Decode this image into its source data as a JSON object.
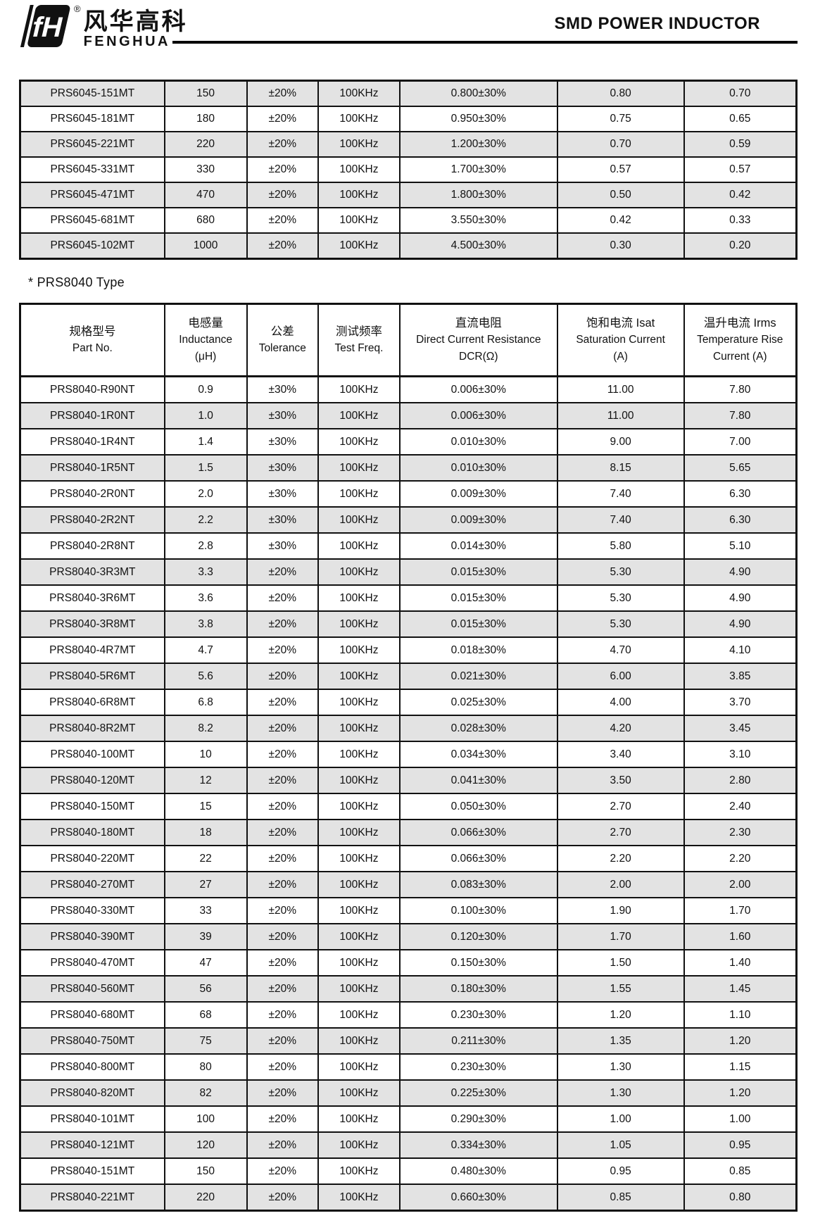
{
  "header": {
    "brand_chinese": "风华高科",
    "brand_english": "FENGHUA",
    "registered_mark": "®",
    "title": "SMD POWER INDUCTOR"
  },
  "colors": {
    "row_shade": "#e3e3e3",
    "border": "#111111",
    "text": "#111111"
  },
  "tables": {
    "prs6045": {
      "rows": [
        [
          "PRS6045-151MT",
          "150",
          "±20%",
          "100KHz",
          "0.800±30%",
          "0.80",
          "0.70"
        ],
        [
          "PRS6045-181MT",
          "180",
          "±20%",
          "100KHz",
          "0.950±30%",
          "0.75",
          "0.65"
        ],
        [
          "PRS6045-221MT",
          "220",
          "±20%",
          "100KHz",
          "1.200±30%",
          "0.70",
          "0.59"
        ],
        [
          "PRS6045-331MT",
          "330",
          "±20%",
          "100KHz",
          "1.700±30%",
          "0.57",
          "0.57"
        ],
        [
          "PRS6045-471MT",
          "470",
          "±20%",
          "100KHz",
          "1.800±30%",
          "0.50",
          "0.42"
        ],
        [
          "PRS6045-681MT",
          "680",
          "±20%",
          "100KHz",
          "3.550±30%",
          "0.42",
          "0.33"
        ],
        [
          "PRS6045-102MT",
          "1000",
          "±20%",
          "100KHz",
          "4.500±30%",
          "0.30",
          "0.20"
        ]
      ]
    },
    "prs8040": {
      "heading": "*  PRS8040 Type",
      "header_lines": [
        [
          "规格型号",
          "Part No."
        ],
        [
          "电感量",
          "Inductance",
          "(μH)"
        ],
        [
          "公差",
          "Tolerance"
        ],
        [
          "测试频率",
          "Test Freq."
        ],
        [
          "直流电阻",
          "Direct Current Resistance",
          "DCR(Ω)"
        ],
        [
          "饱和电流  Isat",
          "Saturation Current",
          "(A)"
        ],
        [
          "温升电流  Irms",
          "Temperature Rise",
          "Current (A)"
        ]
      ],
      "rows": [
        [
          "PRS8040-R90NT",
          "0.9",
          "±30%",
          "100KHz",
          "0.006±30%",
          "11.00",
          "7.80"
        ],
        [
          "PRS8040-1R0NT",
          "1.0",
          "±30%",
          "100KHz",
          "0.006±30%",
          "11.00",
          "7.80"
        ],
        [
          "PRS8040-1R4NT",
          "1.4",
          "±30%",
          "100KHz",
          "0.010±30%",
          "9.00",
          "7.00"
        ],
        [
          "PRS8040-1R5NT",
          "1.5",
          "±30%",
          "100KHz",
          "0.010±30%",
          "8.15",
          "5.65"
        ],
        [
          "PRS8040-2R0NT",
          "2.0",
          "±30%",
          "100KHz",
          "0.009±30%",
          "7.40",
          "6.30"
        ],
        [
          "PRS8040-2R2NT",
          "2.2",
          "±30%",
          "100KHz",
          "0.009±30%",
          "7.40",
          "6.30"
        ],
        [
          "PRS8040-2R8NT",
          "2.8",
          "±30%",
          "100KHz",
          "0.014±30%",
          "5.80",
          "5.10"
        ],
        [
          "PRS8040-3R3MT",
          "3.3",
          "±20%",
          "100KHz",
          "0.015±30%",
          "5.30",
          "4.90"
        ],
        [
          "PRS8040-3R6MT",
          "3.6",
          "±20%",
          "100KHz",
          "0.015±30%",
          "5.30",
          "4.90"
        ],
        [
          "PRS8040-3R8MT",
          "3.8",
          "±20%",
          "100KHz",
          "0.015±30%",
          "5.30",
          "4.90"
        ],
        [
          "PRS8040-4R7MT",
          "4.7",
          "±20%",
          "100KHz",
          "0.018±30%",
          "4.70",
          "4.10"
        ],
        [
          "PRS8040-5R6MT",
          "5.6",
          "±20%",
          "100KHz",
          "0.021±30%",
          "6.00",
          "3.85"
        ],
        [
          "PRS8040-6R8MT",
          "6.8",
          "±20%",
          "100KHz",
          "0.025±30%",
          "4.00",
          "3.70"
        ],
        [
          "PRS8040-8R2MT",
          "8.2",
          "±20%",
          "100KHz",
          "0.028±30%",
          "4.20",
          "3.45"
        ],
        [
          "PRS8040-100MT",
          "10",
          "±20%",
          "100KHz",
          "0.034±30%",
          "3.40",
          "3.10"
        ],
        [
          "PRS8040-120MT",
          "12",
          "±20%",
          "100KHz",
          "0.041±30%",
          "3.50",
          "2.80"
        ],
        [
          "PRS8040-150MT",
          "15",
          "±20%",
          "100KHz",
          "0.050±30%",
          "2.70",
          "2.40"
        ],
        [
          "PRS8040-180MT",
          "18",
          "±20%",
          "100KHz",
          "0.066±30%",
          "2.70",
          "2.30"
        ],
        [
          "PRS8040-220MT",
          "22",
          "±20%",
          "100KHz",
          "0.066±30%",
          "2.20",
          "2.20"
        ],
        [
          "PRS8040-270MT",
          "27",
          "±20%",
          "100KHz",
          "0.083±30%",
          "2.00",
          "2.00"
        ],
        [
          "PRS8040-330MT",
          "33",
          "±20%",
          "100KHz",
          "0.100±30%",
          "1.90",
          "1.70"
        ],
        [
          "PRS8040-390MT",
          "39",
          "±20%",
          "100KHz",
          "0.120±30%",
          "1.70",
          "1.60"
        ],
        [
          "PRS8040-470MT",
          "47",
          "±20%",
          "100KHz",
          "0.150±30%",
          "1.50",
          "1.40"
        ],
        [
          "PRS8040-560MT",
          "56",
          "±20%",
          "100KHz",
          "0.180±30%",
          "1.55",
          "1.45"
        ],
        [
          "PRS8040-680MT",
          "68",
          "±20%",
          "100KHz",
          "0.230±30%",
          "1.20",
          "1.10"
        ],
        [
          "PRS8040-750MT",
          "75",
          "±20%",
          "100KHz",
          "0.211±30%",
          "1.35",
          "1.20"
        ],
        [
          "PRS8040-800MT",
          "80",
          "±20%",
          "100KHz",
          "0.230±30%",
          "1.30",
          "1.15"
        ],
        [
          "PRS8040-820MT",
          "82",
          "±20%",
          "100KHz",
          "0.225±30%",
          "1.30",
          "1.20"
        ],
        [
          "PRS8040-101MT",
          "100",
          "±20%",
          "100KHz",
          "0.290±30%",
          "1.00",
          "1.00"
        ],
        [
          "PRS8040-121MT",
          "120",
          "±20%",
          "100KHz",
          "0.334±30%",
          "1.05",
          "0.95"
        ],
        [
          "PRS8040-151MT",
          "150",
          "±20%",
          "100KHz",
          "0.480±30%",
          "0.95",
          "0.85"
        ],
        [
          "PRS8040-221MT",
          "220",
          "±20%",
          "100KHz",
          "0.660±30%",
          "0.85",
          "0.80"
        ]
      ]
    }
  }
}
